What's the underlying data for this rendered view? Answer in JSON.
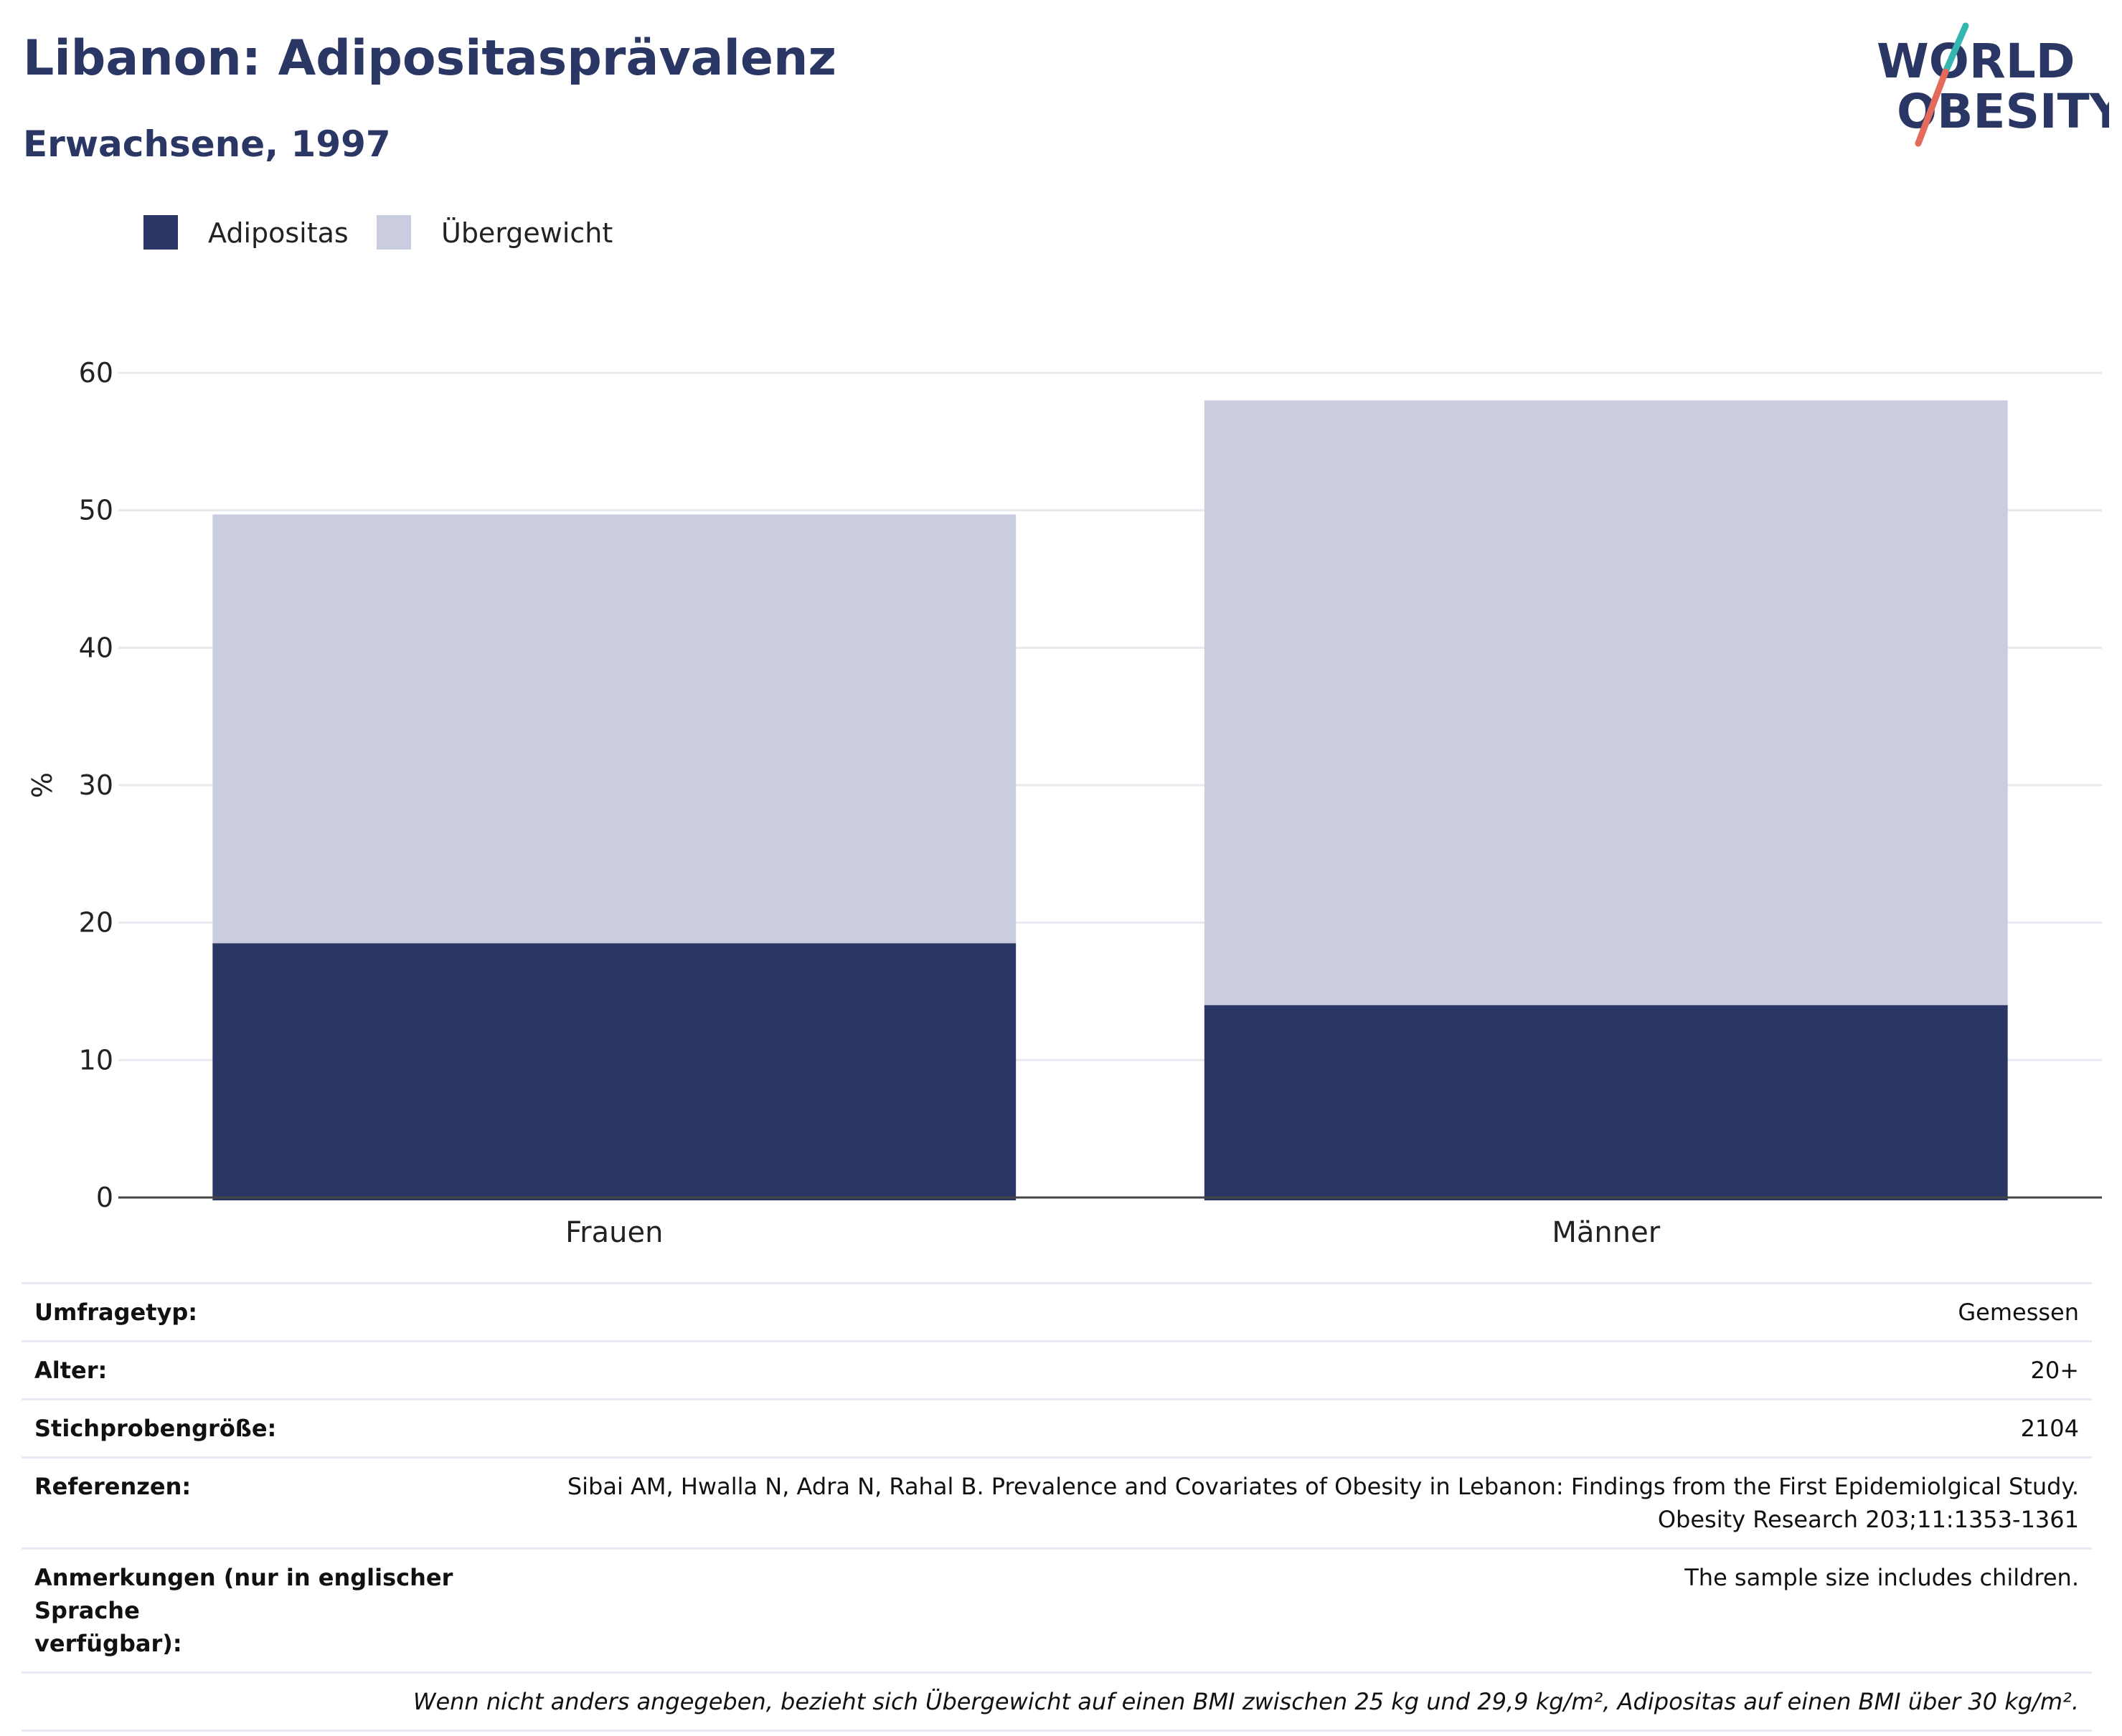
{
  "header": {
    "title": "Libanon: Adipositasprävalenz",
    "subtitle": "Erwachsene, 1997"
  },
  "logo": {
    "line1": "WORLD",
    "line2": "OBESITY"
  },
  "colors": {
    "obesity": "#2a3663",
    "overweight": "#cacce0",
    "title": "#2a3663",
    "logo_teal": "#35b6b0",
    "logo_coral": "#e46a5c",
    "gridline": "#e8e8ef",
    "axis": "#444444"
  },
  "chart_data": {
    "type": "bar",
    "stacked": true,
    "categories": [
      "Frauen",
      "Männer"
    ],
    "series": [
      {
        "name": "Adipositas",
        "color": "#2a3663",
        "values": [
          18.5,
          14.0
        ]
      },
      {
        "name": "Übergewicht",
        "color": "#cacce0",
        "values": [
          31.2,
          44.0
        ]
      }
    ],
    "xlabel": "",
    "ylabel": "%",
    "ylim": [
      0,
      60
    ],
    "yticks": [
      0,
      10,
      20,
      30,
      40,
      50,
      60
    ],
    "grid": true,
    "legend_position": "top-left"
  },
  "metadata": {
    "rows": [
      {
        "label": "Umfragetyp:",
        "value": "Gemessen"
      },
      {
        "label": "Alter:",
        "value": "20+"
      },
      {
        "label": "Stichprobengröße:",
        "value": "2104"
      },
      {
        "label": "Referenzen:",
        "value_lines": [
          "Sibai AM, Hwalla N, Adra N, Rahal B. Prevalence and Covariates of Obesity in Lebanon: Findings from the First Epidemiolgical Study.",
          "Obesity Research 203;11:1353-1361"
        ]
      },
      {
        "label_lines": [
          "Anmerkungen (nur in englischer Sprache",
          "verfügbar):"
        ],
        "value": "The sample size includes children."
      }
    ],
    "footnote": "Wenn nicht anders angegeben, bezieht sich Übergewicht auf einen BMI zwischen 25 kg und 29,9 kg/m², Adipositas auf einen BMI über 30 kg/m²."
  }
}
